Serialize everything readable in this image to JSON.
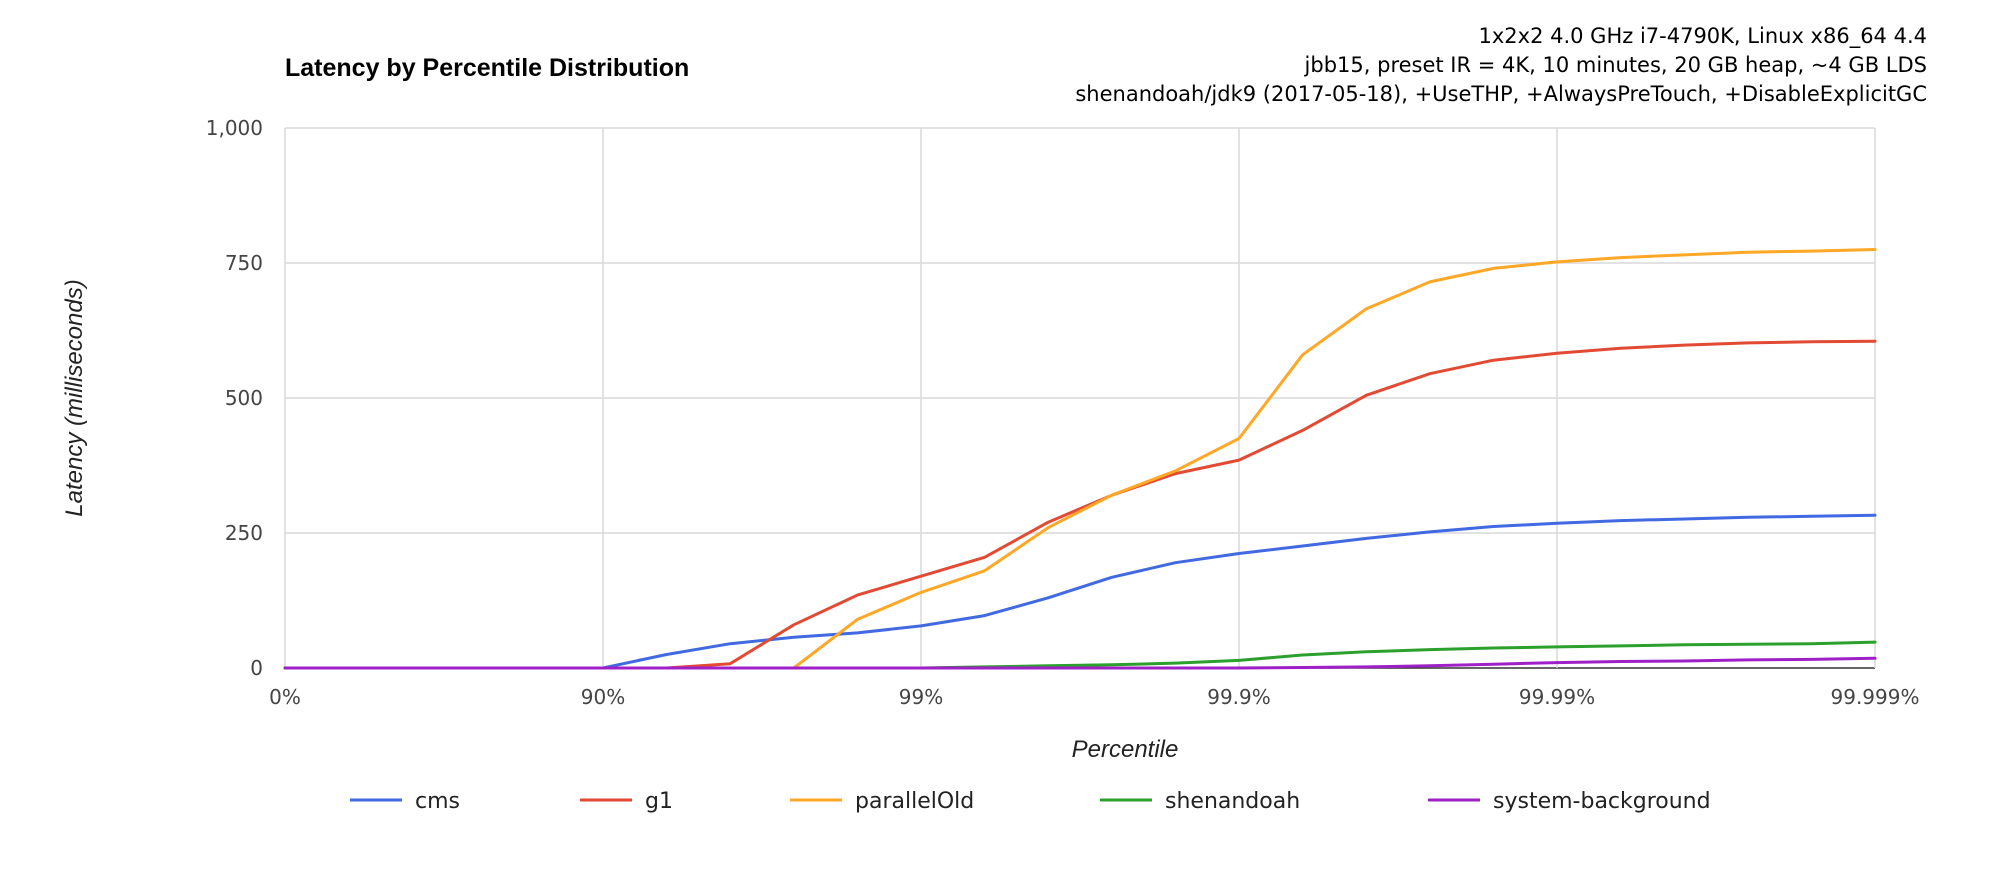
{
  "chart_data": {
    "type": "line",
    "title": "Latency by Percentile Distribution",
    "subtitle_lines": [
      "1x2x2 4.0 GHz i7-4790K, Linux x86_64 4.4",
      "jbb15, preset IR = 4K, 10 minutes, 20 GB heap, ~4 GB LDS",
      "shenandoah/jdk9 (2017-05-18), +UseTHP, +AlwaysPreTouch, +DisableExplicitGC"
    ],
    "xlabel": "Percentile",
    "ylabel": "Latency (milliseconds)",
    "x_scale": "log-percentile (nines)",
    "x_ticks": [
      "0%",
      "90%",
      "99%",
      "99.9%",
      "99.99%",
      "99.999%"
    ],
    "xlim": [
      0,
      5
    ],
    "y_ticks": [
      "0",
      "250",
      "500",
      "750",
      "1,000"
    ],
    "ylim": [
      0,
      1000
    ],
    "grid": true,
    "legend_position": "bottom",
    "x": [
      0,
      0.2,
      0.4,
      0.6,
      0.8,
      1.0,
      1.2,
      1.4,
      1.6,
      1.8,
      2.0,
      2.2,
      2.4,
      2.6,
      2.8,
      3.0,
      3.2,
      3.4,
      3.6,
      3.8,
      4.0,
      4.2,
      4.4,
      4.6,
      4.8,
      5.0
    ],
    "series": [
      {
        "name": "cms",
        "color": "#4169e1",
        "values": [
          0,
          0,
          0,
          0,
          0,
          0,
          25,
          45,
          57,
          65,
          78,
          97,
          130,
          168,
          195,
          212,
          226,
          240,
          252,
          262,
          268,
          273,
          276,
          279,
          281,
          283
        ]
      },
      {
        "name": "g1",
        "color": "#e34a33",
        "values": [
          0,
          0,
          0,
          0,
          0,
          0,
          0,
          8,
          80,
          135,
          170,
          205,
          270,
          320,
          360,
          385,
          440,
          505,
          545,
          570,
          583,
          592,
          598,
          602,
          604,
          605
        ]
      },
      {
        "name": "parallelOld",
        "color": "#ffa726",
        "values": [
          0,
          0,
          0,
          0,
          0,
          0,
          0,
          0,
          0,
          90,
          140,
          180,
          260,
          320,
          365,
          425,
          580,
          665,
          715,
          740,
          752,
          760,
          765,
          770,
          772,
          775
        ]
      },
      {
        "name": "shenandoah",
        "color": "#2ca02c",
        "values": [
          0,
          0,
          0,
          0,
          0,
          0,
          0,
          0,
          0,
          0,
          0,
          2,
          4,
          6,
          9,
          14,
          24,
          30,
          34,
          37,
          39,
          41,
          43,
          44,
          45,
          48
        ]
      },
      {
        "name": "system-background",
        "color": "#a020c8",
        "values": [
          0,
          0,
          0,
          0,
          0,
          0,
          0,
          0,
          0,
          0,
          0,
          0,
          0,
          0,
          0,
          0,
          1,
          2,
          4,
          7,
          10,
          12,
          13,
          15,
          16,
          18
        ]
      }
    ]
  }
}
